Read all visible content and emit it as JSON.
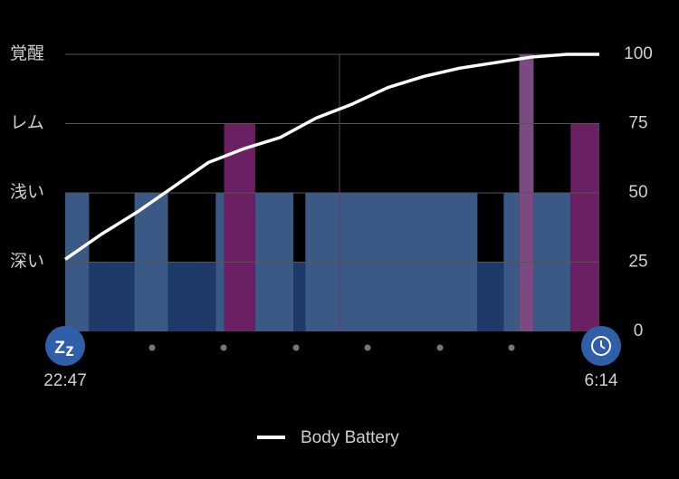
{
  "chart_data": {
    "type": "sleep",
    "xlim": [
      "22:47",
      "6:14"
    ],
    "ylim": [
      0,
      100
    ],
    "yticks": [
      0,
      25,
      50,
      75,
      100
    ],
    "stage_ticks": [
      {
        "value": 100,
        "label": "覚醒"
      },
      {
        "value": 75,
        "label": "レム"
      },
      {
        "value": 50,
        "label": "浅い"
      },
      {
        "value": 25,
        "label": "深い"
      }
    ],
    "stage_colors": [
      "#7b4a80",
      "#6a2062",
      "#3a5a85",
      "#1e3a69"
    ],
    "grid": true,
    "segments": [
      {
        "start": "22:47",
        "end": "23:07",
        "value": 50
      },
      {
        "start": "23:07",
        "end": "23:45",
        "value": 25
      },
      {
        "start": "23:45",
        "end": "0:13",
        "value": 50
      },
      {
        "start": "0:13",
        "end": "0:53",
        "value": 25
      },
      {
        "start": "0:53",
        "end": "1:00",
        "value": 50
      },
      {
        "start": "1:00",
        "end": "1:26",
        "value": 75
      },
      {
        "start": "1:26",
        "end": "1:58",
        "value": 50
      },
      {
        "start": "1:58",
        "end": "2:08",
        "value": 25
      },
      {
        "start": "2:08",
        "end": "4:32",
        "value": 50
      },
      {
        "start": "4:32",
        "end": "4:54",
        "value": 25
      },
      {
        "start": "4:54",
        "end": "5:07",
        "value": 50
      },
      {
        "start": "5:07",
        "end": "5:19",
        "value": 100
      },
      {
        "start": "5:19",
        "end": "5:50",
        "value": 50
      },
      {
        "start": "5:50",
        "end": "6:14",
        "value": 75
      }
    ],
    "series": [
      {
        "name": "Body Battery",
        "color": "#ffffff",
        "x": [
          "22:47",
          "23:17",
          "23:47",
          "0:17",
          "0:47",
          "1:17",
          "1:47",
          "2:17",
          "2:47",
          "3:17",
          "3:47",
          "4:17",
          "4:47",
          "5:17",
          "5:47",
          "6:14"
        ],
        "values": [
          26,
          35,
          43,
          52,
          61,
          66,
          70,
          77,
          82,
          88,
          92,
          95,
          97,
          99,
          100,
          100
        ]
      }
    ]
  }
}
